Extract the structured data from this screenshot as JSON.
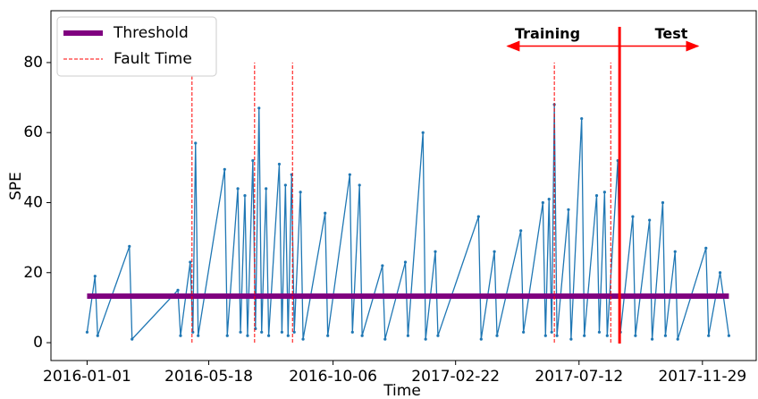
{
  "chart_data": {
    "type": "line",
    "xlabel": "Time",
    "ylabel": "SPE",
    "x": [
      "2016-01-01",
      "2016-01-10",
      "2016-01-13",
      "2016-02-18",
      "2016-02-21",
      "2016-04-13",
      "2016-04-16",
      "2016-04-27",
      "2016-04-30",
      "2016-05-03",
      "2016-05-06",
      "2016-06-05",
      "2016-06-08",
      "2016-06-20",
      "2016-06-23",
      "2016-06-28",
      "2016-07-01",
      "2016-07-07",
      "2016-07-10",
      "2016-07-14",
      "2016-07-17",
      "2016-07-22",
      "2016-07-25",
      "2016-08-06",
      "2016-08-09",
      "2016-08-13",
      "2016-08-16",
      "2016-08-20",
      "2016-08-23",
      "2016-08-30",
      "2016-09-02",
      "2016-09-27",
      "2016-09-30",
      "2016-10-25",
      "2016-10-28",
      "2016-11-05",
      "2016-11-08",
      "2016-12-01",
      "2016-12-04",
      "2016-12-27",
      "2016-12-30",
      "2017-01-16",
      "2017-01-19",
      "2017-01-30",
      "2017-02-02",
      "2017-03-20",
      "2017-03-23",
      "2017-04-07",
      "2017-04-10",
      "2017-05-07",
      "2017-05-10",
      "2017-06-01",
      "2017-06-04",
      "2017-06-08",
      "2017-06-11",
      "2017-06-14",
      "2017-06-17",
      "2017-06-30",
      "2017-07-03",
      "2017-07-15",
      "2017-07-18",
      "2017-08-01",
      "2017-08-04",
      "2017-08-10",
      "2017-08-13",
      "2017-08-25",
      "2017-08-28",
      "2017-09-11",
      "2017-09-14",
      "2017-09-30",
      "2017-10-03",
      "2017-10-15",
      "2017-10-18",
      "2017-10-29",
      "2017-11-01",
      "2017-12-03",
      "2017-12-06",
      "2017-12-19",
      "2017-12-29"
    ],
    "series": [
      {
        "name": "SPE",
        "color": "#1f77b4",
        "values": [
          3,
          19,
          2,
          27.5,
          1,
          15,
          2,
          23,
          3,
          57,
          2,
          49.5,
          2,
          44,
          3,
          42,
          2,
          52,
          4,
          67,
          3,
          44,
          2,
          51,
          3,
          45,
          2,
          48,
          3,
          43,
          1,
          37,
          2,
          48,
          3,
          45,
          2,
          22,
          1,
          23,
          2,
          60,
          1,
          26,
          2,
          36,
          1,
          26,
          2,
          32,
          3,
          40,
          2,
          41,
          3,
          68,
          2,
          38,
          1,
          64,
          2,
          42,
          3,
          43,
          2,
          52,
          3,
          36,
          2,
          35,
          1,
          40,
          2,
          26,
          1,
          27,
          2,
          20,
          2
        ]
      }
    ],
    "threshold": {
      "name": "Threshold",
      "value": 13.3,
      "color": "#800080"
    },
    "faults": {
      "name": "Fault Time",
      "color": "#ff0000",
      "dates": [
        "2016-04-29",
        "2016-07-09",
        "2016-08-21",
        "2017-06-14",
        "2017-08-17"
      ],
      "tops": [
        76,
        80,
        80,
        80,
        80
      ]
    },
    "split": {
      "date": "2017-08-27",
      "color": "#ff0000",
      "arrow_y": 84.7,
      "left_end": "2017-04-22",
      "right_end": "2017-11-24",
      "left_label": "Training",
      "right_label": "Test"
    },
    "xlim": [
      "2015-11-21",
      "2018-01-29"
    ],
    "ylim": [
      -5.1,
      94.8
    ],
    "xticks": [
      "2016-01-01",
      "2016-05-18",
      "2016-10-06",
      "2017-02-22",
      "2017-07-12",
      "2017-11-29"
    ],
    "yticks": [
      0,
      20,
      40,
      60,
      80
    ],
    "legend": "upper left"
  }
}
